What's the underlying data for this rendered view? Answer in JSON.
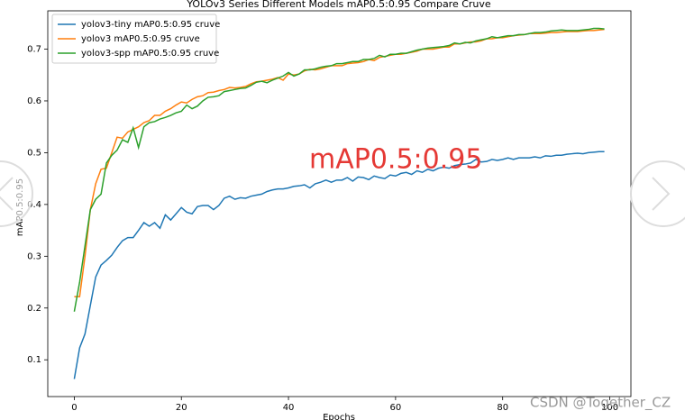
{
  "chart_data": {
    "type": "line",
    "title": "YOLOv3 Series Different Models mAP0.5:0.95 Compare Cruve",
    "xlabel": "Epochs",
    "ylabel": "mAP0.5:0.95",
    "annotation": "mAP0.5:0.95",
    "watermark": "CSDN @Together_CZ",
    "x": [
      0,
      1,
      2,
      3,
      4,
      5,
      6,
      7,
      8,
      9,
      10,
      11,
      12,
      13,
      14,
      15,
      16,
      17,
      18,
      19,
      20,
      21,
      22,
      23,
      24,
      25,
      26,
      27,
      28,
      29,
      30,
      31,
      32,
      33,
      34,
      35,
      36,
      37,
      38,
      39,
      40,
      41,
      42,
      43,
      44,
      45,
      46,
      47,
      48,
      49,
      50,
      51,
      52,
      53,
      54,
      55,
      56,
      57,
      58,
      59,
      60,
      61,
      62,
      63,
      64,
      65,
      66,
      67,
      68,
      69,
      70,
      71,
      72,
      73,
      74,
      75,
      76,
      77,
      78,
      79,
      80,
      81,
      82,
      83,
      84,
      85,
      86,
      87,
      88,
      89,
      90,
      91,
      92,
      93,
      94,
      95,
      96,
      97,
      98,
      99
    ],
    "series": [
      {
        "name": "yolov3-tiny mAP0.5:0.95 cruve",
        "color": "#1f77b4",
        "values": [
          0.063,
          0.123,
          0.15,
          0.205,
          0.26,
          0.283,
          0.292,
          0.302,
          0.317,
          0.33,
          0.336,
          0.336,
          0.35,
          0.365,
          0.358,
          0.365,
          0.354,
          0.38,
          0.37,
          0.382,
          0.394,
          0.385,
          0.382,
          0.396,
          0.398,
          0.398,
          0.39,
          0.398,
          0.412,
          0.416,
          0.41,
          0.413,
          0.412,
          0.416,
          0.418,
          0.42,
          0.425,
          0.428,
          0.43,
          0.43,
          0.432,
          0.435,
          0.436,
          0.438,
          0.432,
          0.44,
          0.443,
          0.447,
          0.443,
          0.447,
          0.447,
          0.452,
          0.445,
          0.453,
          0.452,
          0.448,
          0.455,
          0.452,
          0.45,
          0.457,
          0.455,
          0.46,
          0.462,
          0.458,
          0.465,
          0.462,
          0.468,
          0.465,
          0.47,
          0.472,
          0.47,
          0.475,
          0.477,
          0.478,
          0.48,
          0.487,
          0.482,
          0.483,
          0.487,
          0.485,
          0.487,
          0.49,
          0.487,
          0.49,
          0.49,
          0.49,
          0.492,
          0.49,
          0.494,
          0.493,
          0.495,
          0.495,
          0.497,
          0.498,
          0.499,
          0.498,
          0.5,
          0.501,
          0.502,
          0.502
        ]
      },
      {
        "name": "yolov3 mAP0.5:0.95 cruve",
        "color": "#ff7f0e",
        "values": [
          0.222,
          0.222,
          0.3,
          0.39,
          0.44,
          0.468,
          0.47,
          0.5,
          0.53,
          0.528,
          0.54,
          0.545,
          0.55,
          0.558,
          0.562,
          0.572,
          0.572,
          0.58,
          0.585,
          0.592,
          0.598,
          0.596,
          0.603,
          0.608,
          0.61,
          0.616,
          0.617,
          0.62,
          0.622,
          0.626,
          0.625,
          0.626,
          0.628,
          0.633,
          0.637,
          0.638,
          0.64,
          0.642,
          0.645,
          0.64,
          0.652,
          0.65,
          0.652,
          0.658,
          0.661,
          0.66,
          0.662,
          0.665,
          0.668,
          0.668,
          0.668,
          0.672,
          0.673,
          0.674,
          0.676,
          0.68,
          0.678,
          0.684,
          0.686,
          0.688,
          0.69,
          0.69,
          0.692,
          0.694,
          0.696,
          0.7,
          0.7,
          0.7,
          0.702,
          0.704,
          0.704,
          0.71,
          0.71,
          0.712,
          0.714,
          0.714,
          0.716,
          0.72,
          0.72,
          0.722,
          0.722,
          0.724,
          0.726,
          0.727,
          0.728,
          0.73,
          0.73,
          0.73,
          0.731,
          0.732,
          0.732,
          0.733,
          0.734,
          0.734,
          0.734,
          0.735,
          0.736,
          0.736,
          0.737,
          0.738
        ]
      },
      {
        "name": "yolov3-spp mAP0.5:0.95 cruve",
        "color": "#2ca02c",
        "values": [
          0.193,
          0.25,
          0.32,
          0.39,
          0.41,
          0.42,
          0.48,
          0.495,
          0.505,
          0.525,
          0.52,
          0.548,
          0.51,
          0.55,
          0.558,
          0.56,
          0.565,
          0.568,
          0.572,
          0.577,
          0.58,
          0.592,
          0.585,
          0.59,
          0.6,
          0.607,
          0.608,
          0.61,
          0.618,
          0.62,
          0.622,
          0.624,
          0.625,
          0.63,
          0.636,
          0.638,
          0.635,
          0.64,
          0.644,
          0.648,
          0.655,
          0.648,
          0.652,
          0.66,
          0.66,
          0.662,
          0.665,
          0.667,
          0.668,
          0.672,
          0.672,
          0.674,
          0.676,
          0.676,
          0.68,
          0.68,
          0.682,
          0.688,
          0.685,
          0.69,
          0.69,
          0.692,
          0.692,
          0.695,
          0.698,
          0.7,
          0.702,
          0.703,
          0.704,
          0.705,
          0.707,
          0.712,
          0.71,
          0.713,
          0.712,
          0.716,
          0.718,
          0.72,
          0.724,
          0.722,
          0.724,
          0.726,
          0.726,
          0.728,
          0.728,
          0.73,
          0.732,
          0.732,
          0.733,
          0.735,
          0.736,
          0.737,
          0.736,
          0.736,
          0.736,
          0.737,
          0.738,
          0.74,
          0.74,
          0.739
        ]
      }
    ],
    "xlim": [
      -4.95,
      103.95
    ],
    "ylim": [
      0.029,
      0.774
    ],
    "xticks": [
      0,
      20,
      40,
      60,
      80,
      100
    ],
    "yticks": [
      0.1,
      0.2,
      0.3,
      0.4,
      0.5,
      0.6,
      0.7
    ],
    "legend": "upper left",
    "annotation_color": "#e53935"
  }
}
